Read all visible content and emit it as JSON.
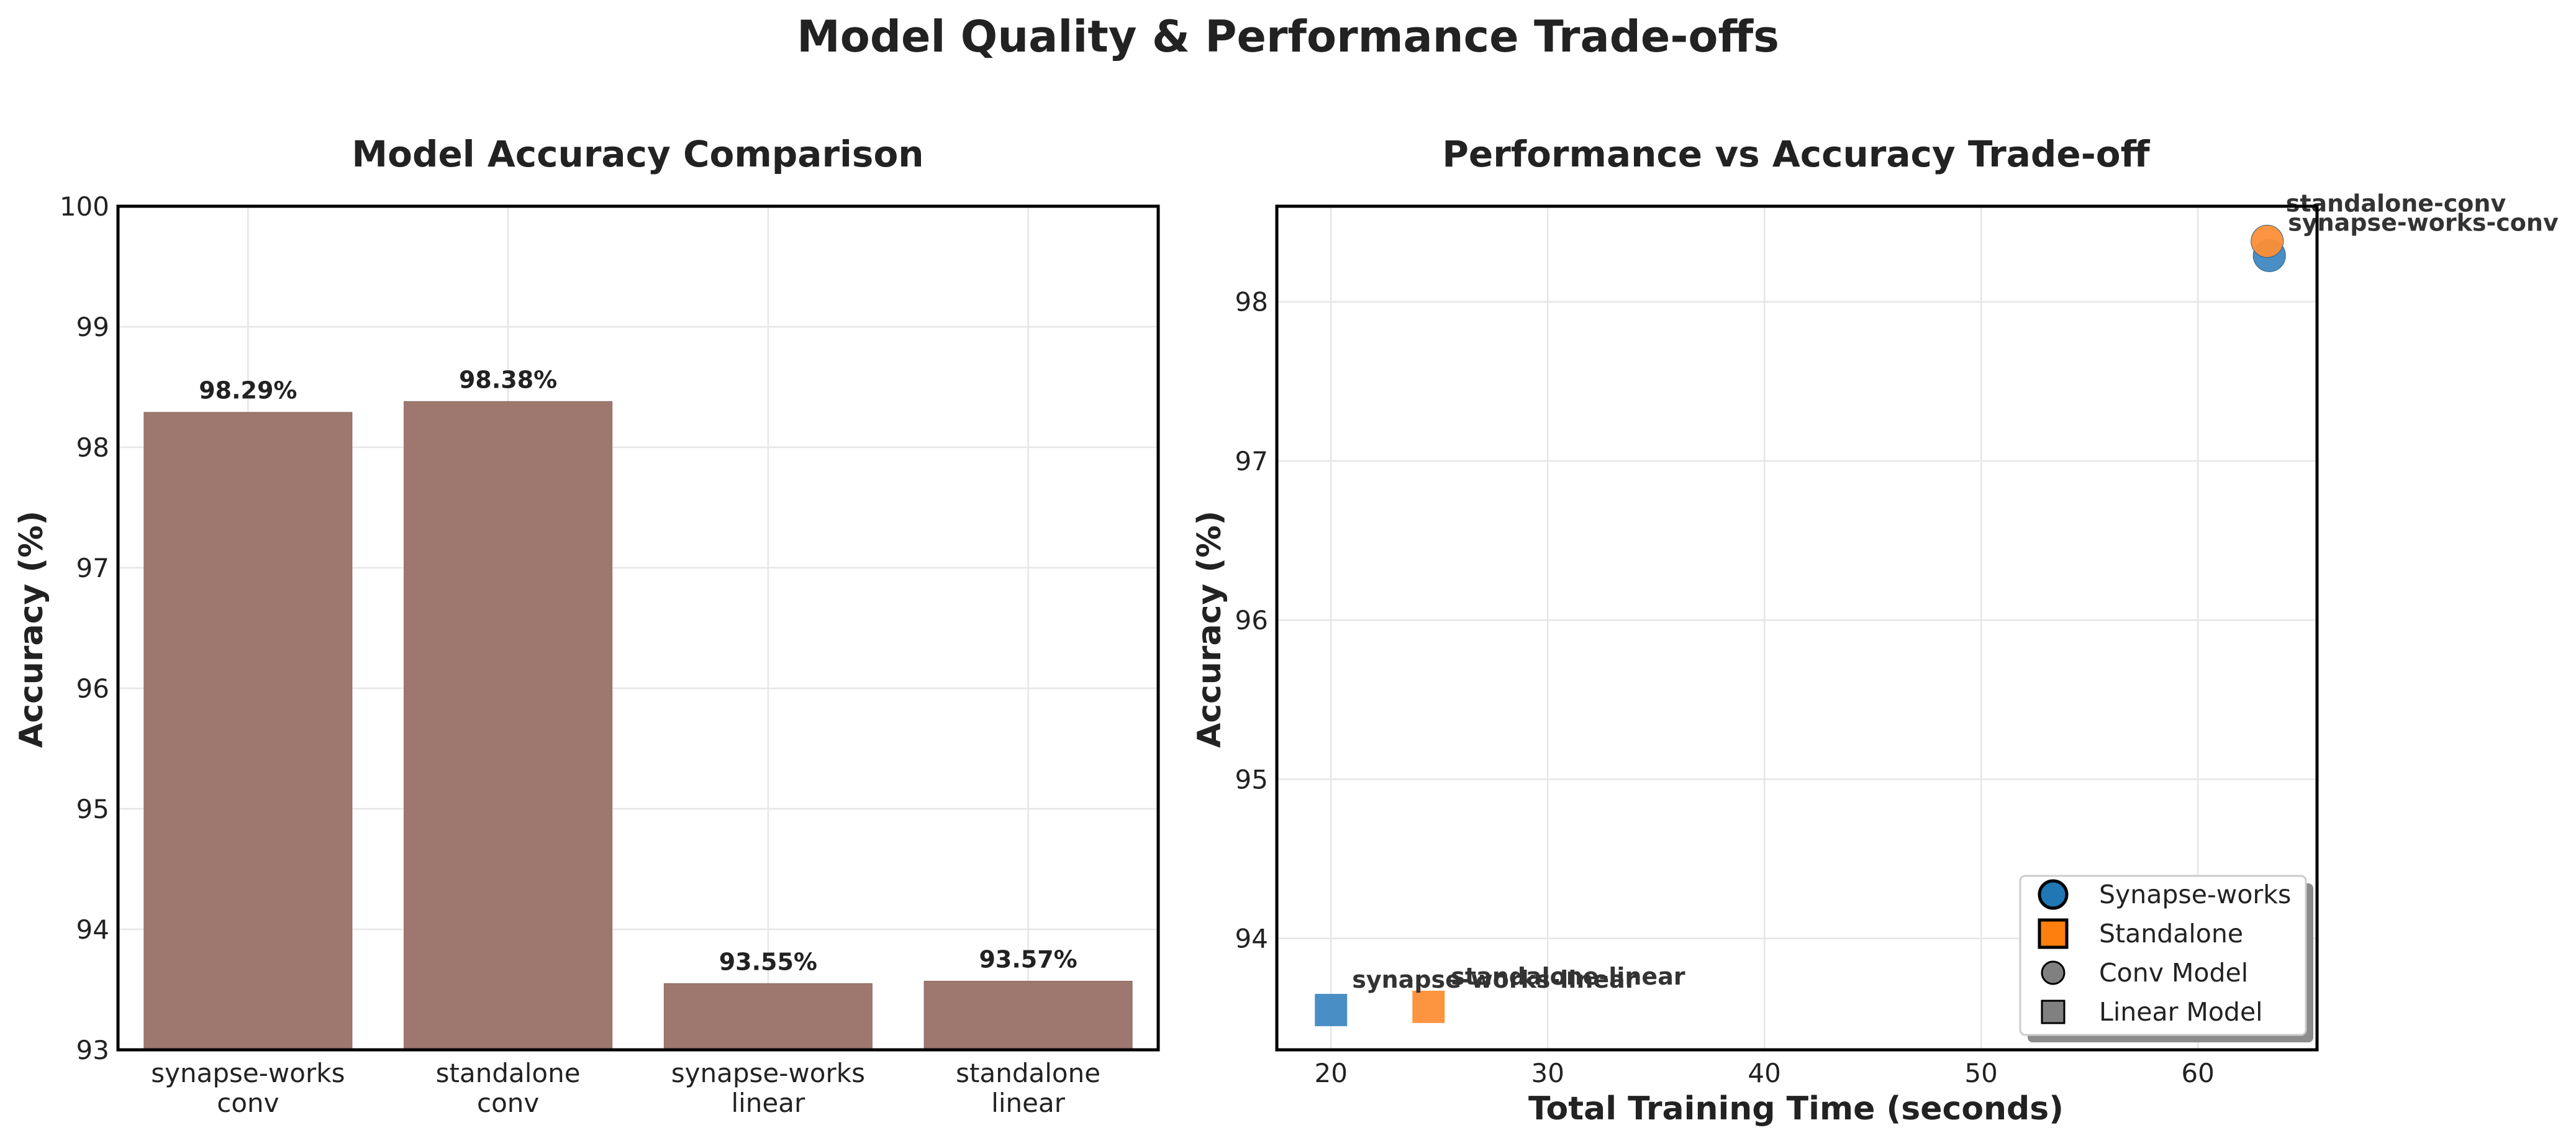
{
  "figure_title": "Model Quality & Performance Trade-offs",
  "colors": {
    "bar": "#9e776e",
    "synapse_works": "#3f89c2",
    "standalone": "#fd8e36",
    "synapse_works_legend": "#1f77b4",
    "standalone_legend": "#ff7f0e",
    "neutral_marker": "#808080"
  },
  "chart_data": [
    {
      "type": "bar",
      "title": "Model Accuracy Comparison",
      "xlabel": "",
      "ylabel": "Accuracy (%)",
      "categories": [
        [
          "synapse-works",
          "conv"
        ],
        [
          "standalone",
          "conv"
        ],
        [
          "synapse-works",
          "linear"
        ],
        [
          "standalone",
          "linear"
        ]
      ],
      "values": [
        98.29,
        98.38,
        93.55,
        93.57
      ],
      "data_labels": [
        "98.29%",
        "98.38%",
        "93.55%",
        "93.57%"
      ],
      "ylim": [
        93,
        100
      ],
      "yticks": [
        93,
        94,
        95,
        96,
        97,
        98,
        99,
        100
      ],
      "grid": true
    },
    {
      "type": "scatter",
      "title": "Performance vs Accuracy Trade-off",
      "xlabel": "Total Training Time (seconds)",
      "ylabel": "Accuracy (%)",
      "points": [
        {
          "label": "synapse-works-conv",
          "x": 63.3,
          "y": 98.29,
          "framework": "synapse_works",
          "model": "conv"
        },
        {
          "label": "standalone-conv",
          "x": 63.2,
          "y": 98.38,
          "framework": "standalone",
          "model": "conv"
        },
        {
          "label": "synapse-works-linear",
          "x": 20.0,
          "y": 93.55,
          "framework": "synapse_works",
          "model": "linear"
        },
        {
          "label": "standalone-linear",
          "x": 24.5,
          "y": 93.57,
          "framework": "standalone",
          "model": "linear"
        }
      ],
      "xlim": [
        17.5,
        65.5
      ],
      "ylim": [
        93.3,
        98.6
      ],
      "xticks": [
        20,
        30,
        40,
        50,
        60
      ],
      "yticks": [
        94,
        95,
        96,
        97,
        98
      ],
      "grid": true,
      "legend": {
        "placement": "lower-right",
        "entries": [
          {
            "label": "Synapse-works",
            "marker": "circle",
            "color_key": "synapse_works_legend"
          },
          {
            "label": "Standalone",
            "marker": "square",
            "color_key": "standalone_legend"
          },
          {
            "label": "Conv Model",
            "marker": "circle",
            "color_key": "neutral_marker"
          },
          {
            "label": "Linear Model",
            "marker": "square",
            "color_key": "neutral_marker"
          }
        ]
      }
    }
  ]
}
